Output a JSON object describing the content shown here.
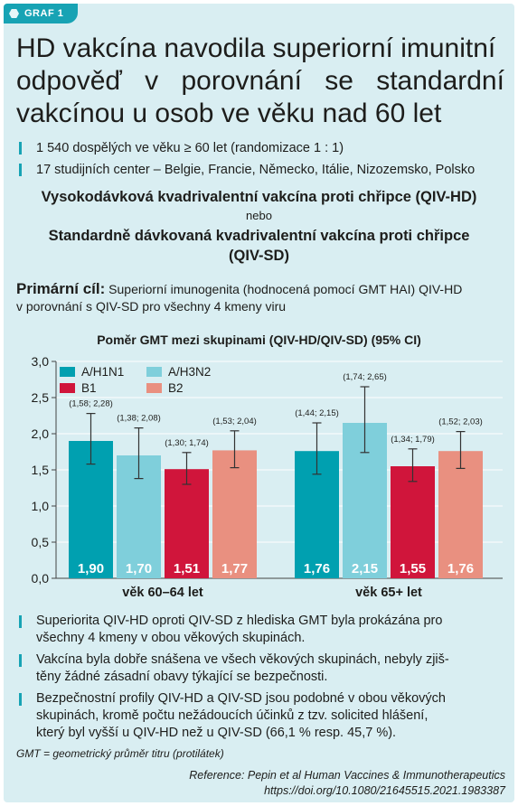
{
  "tag": "GRAF 1",
  "title_lines": [
    "HD vakcína navodila superiorní imunitní",
    "odpověď v porovnání se standardní",
    "vakcínou u osob ve věku nad 60 let"
  ],
  "top_bullets": [
    "1 540 dospělých ve věku ≥ 60 let (randomizace 1 : 1)",
    "17 studijních center – Belgie, Francie, Německo, Itálie, Nizozemsko, Polsko"
  ],
  "vaccine_hd": "Vysokodávková kvadrivalentní vakcína proti chřipce (QIV-HD)",
  "or_word": "nebo",
  "vaccine_sd_line1": "Standardně dávkovaná kvadrivalentní vakcína proti chřipce",
  "vaccine_sd_line2": "(QIV-SD)",
  "primary_label": "Primární cíl:",
  "primary_line1": " Superiorní imunogenita (hodnocená pomocí GMT HAI) QIV-HD",
  "primary_line2": "v porovnání s QIV-SD pro všechny 4 kmeny viru",
  "chart_data": {
    "type": "bar",
    "title": "Poměr GMT mezi skupinami (QIV-HD/QIV-SD) (95% CI)",
    "categories": [
      "věk 60–64 let",
      "věk 65+ let"
    ],
    "ylim": [
      0,
      3.0
    ],
    "yticks": [
      "0,0",
      "0,5",
      "1,0",
      "1,5",
      "2,0",
      "2,5",
      "3,0"
    ],
    "legend_position": "top-left",
    "series": [
      {
        "name": "A/H1N1",
        "color": "#00a0b0",
        "values": [
          1.9,
          1.76
        ],
        "labels": [
          "1,90",
          "1,76"
        ],
        "ci_low": [
          1.58,
          1.44
        ],
        "ci_high": [
          2.28,
          2.15
        ],
        "ci_labels": [
          "(1,58; 2,28)",
          "(1,44; 2,15)"
        ]
      },
      {
        "name": "A/H3N2",
        "color": "#7fcfdb",
        "values": [
          1.7,
          2.15
        ],
        "labels": [
          "1,70",
          "2,15"
        ],
        "ci_low": [
          1.38,
          1.74
        ],
        "ci_high": [
          2.08,
          2.65
        ],
        "ci_labels": [
          "(1,38; 2,08)",
          "(1,74; 2,65)"
        ]
      },
      {
        "name": "B1",
        "color": "#d0153b",
        "values": [
          1.51,
          1.55
        ],
        "labels": [
          "1,51",
          "1,55"
        ],
        "ci_low": [
          1.3,
          1.34
        ],
        "ci_high": [
          1.74,
          1.79
        ],
        "ci_labels": [
          "(1,30; 1,74)",
          "(1,34; 1,79)"
        ]
      },
      {
        "name": "B2",
        "color": "#e99080",
        "values": [
          1.77,
          1.76
        ],
        "labels": [
          "1,77",
          "1,76"
        ],
        "ci_low": [
          1.53,
          1.52
        ],
        "ci_high": [
          2.04,
          2.03
        ],
        "ci_labels": [
          "(1,53; 2,04)",
          "(1,52; 2,03)"
        ]
      }
    ]
  },
  "bottom_bullets": [
    [
      "Superiorita QIV-HD oproti QIV-SD z hlediska GMT byla prokázána pro",
      "všechny 4 kmeny v obou věkových skupinách."
    ],
    [
      "Vakcína byla dobře snášena ve všech věkových skupinách, nebyly zjiš-",
      "těny žádné zásadní obavy týkající se bezpečnosti."
    ],
    [
      "Bezpečnostní profily QIV-HD a QIV-SD jsou podobné v obou věkových",
      "skupinách, kromě počtu nežádoucích účinků z tzv. solicited hlášení,",
      "který byl vyšší u QIV-HD než u QIV-SD (66,1 % resp. 45,7 %)."
    ]
  ],
  "footnote": "GMT = geometrický průměr titru (protilátek)",
  "reference_line1": "Reference: Pepin et al Human Vaccines & Immunotherapeutics",
  "reference_line2": "https://doi.org/10.1080/21645515.2021.1983387",
  "colors": {
    "panel_bg": "#d9eef2",
    "accent": "#17a3b4"
  }
}
